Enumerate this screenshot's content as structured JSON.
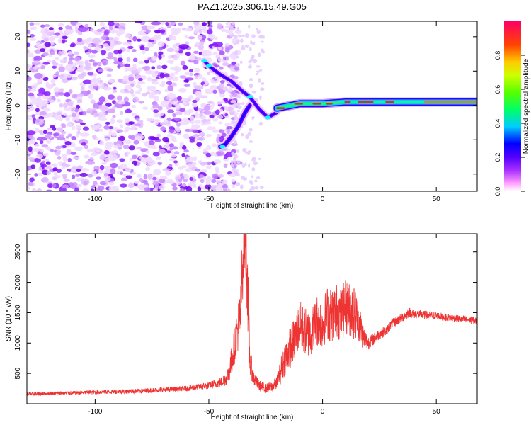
{
  "title": "PAZ1.2025.306.15.49.G05",
  "chart_data": [
    {
      "type": "heatmap",
      "name": "spectrogram",
      "xlabel": "Height of straight line (km)",
      "ylabel": "Frequency (Hz)",
      "xlim": [
        -130,
        68
      ],
      "ylim": [
        -25,
        24.5
      ],
      "xticks": [
        -100,
        -50,
        0,
        50
      ],
      "yticks": [
        -20,
        -10,
        0,
        10,
        20
      ],
      "colorbar": {
        "label": "Normalized spectral amplitude",
        "range": [
          0,
          1
        ],
        "ticks": [
          0.0,
          0.2,
          0.4,
          0.6,
          0.8
        ],
        "tick_labels": [
          "0.0",
          "0.2",
          "0.4",
          "0.6",
          "0.8"
        ],
        "colormap": [
          "#ffffff",
          "#ff99ff",
          "#9900ff",
          "#0000ff",
          "#00ffff",
          "#00ff00",
          "#ffff00",
          "#ff6600",
          "#ff0000",
          "#ff0066"
        ]
      },
      "features": {
        "noise_region_x": [
          -130,
          -42
        ],
        "upper_branch": {
          "x": [
            -52,
            -50,
            -45,
            -40,
            -35,
            -32,
            -28,
            -24,
            -20
          ],
          "freq": [
            13,
            11.5,
            9,
            7,
            4,
            2.5,
            -1,
            -3.5,
            -2
          ]
        },
        "lower_branch": {
          "x": [
            -45,
            -43,
            -40,
            -37,
            -34,
            -32
          ],
          "freq": [
            -12,
            -11.5,
            -9,
            -6,
            -2,
            0
          ]
        },
        "main_line": {
          "x": [
            -20,
            -10,
            0,
            10,
            20,
            30,
            40,
            50,
            60,
            68
          ],
          "freq": [
            -0.8,
            0.5,
            0.5,
            1,
            1,
            1,
            1,
            1,
            1,
            1
          ]
        }
      }
    },
    {
      "type": "line",
      "name": "snr",
      "xlabel": "Height of straight line (km)",
      "ylabel": "SNR (10 * v/v)",
      "xlim": [
        -130,
        68
      ],
      "ylim": [
        0,
        2800
      ],
      "xticks": [
        -100,
        -50,
        0,
        50
      ],
      "yticks": [
        500,
        1000,
        1500,
        2000,
        2500
      ],
      "color": "#ee3333",
      "series": [
        {
          "name": "SNR",
          "x": [
            -130,
            -120,
            -110,
            -100,
            -90,
            -80,
            -70,
            -60,
            -50,
            -45,
            -42,
            -40,
            -38,
            -36,
            -35,
            -34,
            -33,
            -32,
            -30,
            -28,
            -25,
            -22,
            -20,
            -18,
            -16,
            -14,
            -12,
            -10,
            -8,
            -6,
            -4,
            -2,
            0,
            2,
            4,
            6,
            8,
            10,
            12,
            14,
            16,
            18,
            20,
            22,
            25,
            28,
            30,
            32,
            35,
            38,
            40,
            45,
            50,
            55,
            60,
            65,
            68
          ],
          "y": [
            160,
            170,
            180,
            190,
            200,
            210,
            230,
            250,
            300,
            350,
            420,
            700,
            1100,
            1500,
            2500,
            2800,
            2000,
            700,
            400,
            300,
            250,
            280,
            350,
            600,
            800,
            950,
            1100,
            1300,
            1200,
            1150,
            1250,
            1400,
            1300,
            1500,
            1450,
            1550,
            1450,
            1600,
            1550,
            1500,
            1350,
            1100,
            1000,
            1050,
            1150,
            1200,
            1300,
            1350,
            1420,
            1500,
            1480,
            1460,
            1450,
            1420,
            1400,
            1380,
            1360
          ],
          "envelope": [
            30,
            30,
            30,
            35,
            35,
            40,
            40,
            45,
            60,
            80,
            120,
            250,
            350,
            500,
            700,
            600,
            700,
            250,
            120,
            90,
            80,
            90,
            120,
            250,
            300,
            350,
            350,
            400,
            400,
            400,
            400,
            450,
            400,
            450,
            450,
            450,
            450,
            450,
            450,
            450,
            350,
            200,
            120,
            100,
            90,
            80,
            80,
            80,
            80,
            80,
            75,
            70,
            65,
            60,
            60,
            60,
            60
          ]
        }
      ]
    }
  ]
}
